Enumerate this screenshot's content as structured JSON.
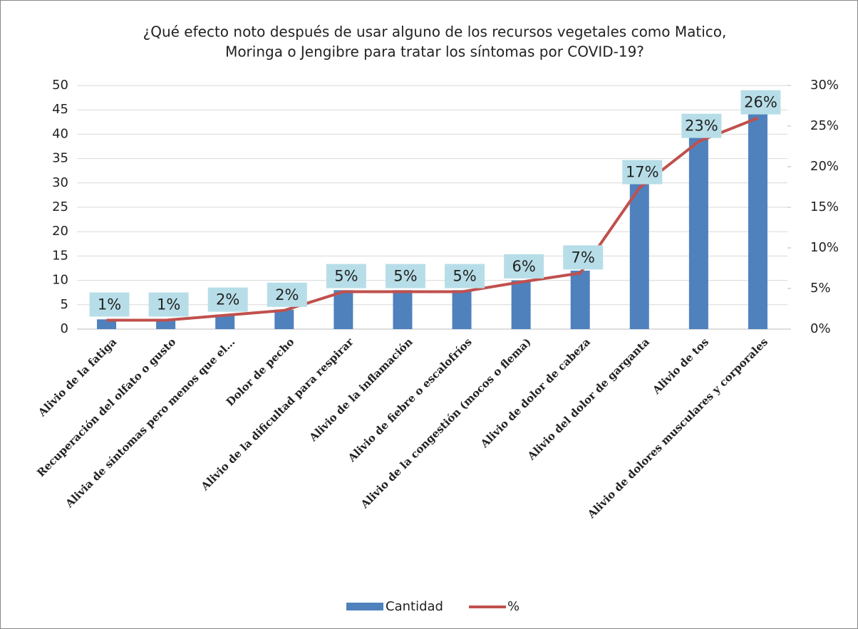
{
  "chart_data": {
    "type": "bar_line",
    "title": [
      "¿Qué efecto noto después de usar alguno de los recursos vegetales como Matico,",
      "Moringa o Jengibre para tratar los síntomas por COVID-19?"
    ],
    "categories": [
      "Alivio de la fatiga",
      "Recuperación  del olfato o gusto",
      "Alivia de síntomas pero menos que el…",
      "Dolor de pecho",
      "Alivio de la dificultad para respirar",
      "Alivio de la inflamación",
      "Alivio de fiebre o escalofríos",
      "Alivio de la congestión (mocos o flema)",
      "Alivio de dolor de cabeza",
      "Alivio del dolor de garganta",
      "Alivio de tos",
      "Alivio de dolores musculares y corporales"
    ],
    "series": [
      {
        "name": "Cantidad",
        "color": "#4f81bd",
        "values": [
          2,
          2,
          3,
          4,
          8,
          8,
          8,
          10,
          12,
          31,
          40,
          45
        ]
      },
      {
        "name": "%",
        "color": "#c0504d",
        "axis": "y2",
        "values": [
          1.1,
          1.1,
          1.7,
          2.3,
          4.6,
          4.6,
          4.6,
          5.8,
          6.9,
          17.4,
          23.1,
          26
        ],
        "value_labels": [
          "1%",
          "1%",
          "2%",
          "2%",
          "5%",
          "5%",
          "5%",
          "6%",
          "7%",
          "17%",
          "23%",
          "26%"
        ]
      }
    ],
    "ylim": [
      0,
      50
    ],
    "yticks": [
      0,
      5,
      10,
      15,
      20,
      25,
      30,
      35,
      40,
      45,
      50
    ],
    "y2lim": [
      0,
      30
    ],
    "y2ticks": [
      {
        "value": 0,
        "label": "0%"
      },
      {
        "value": 5,
        "label": "5%"
      },
      {
        "value": 10,
        "label": "10%"
      },
      {
        "value": 15,
        "label": "15%"
      },
      {
        "value": 20,
        "label": "20%"
      },
      {
        "value": 25,
        "label": "25%"
      },
      {
        "value": 30,
        "label": "30%"
      }
    ],
    "grid": true
  }
}
